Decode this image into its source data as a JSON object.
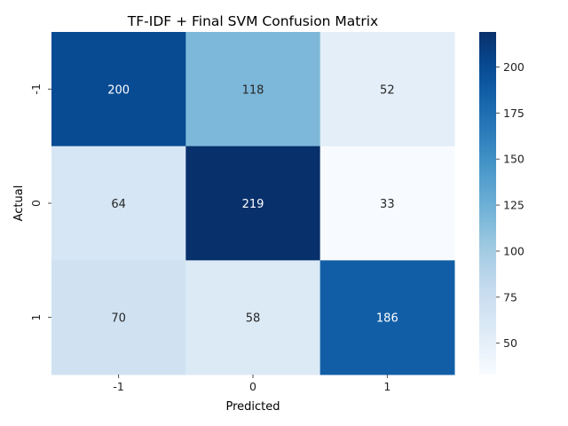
{
  "chart_data": {
    "type": "heatmap",
    "title": "TF-IDF + Final SVM Confusion Matrix",
    "xlabel": "Predicted",
    "ylabel": "Actual",
    "x_categories": [
      "-1",
      "0",
      "1"
    ],
    "y_categories": [
      "-1",
      "0",
      "1"
    ],
    "values": [
      [
        200,
        118,
        52
      ],
      [
        64,
        219,
        33
      ],
      [
        70,
        58,
        186
      ]
    ],
    "colormap": "Blues",
    "color_range": [
      33,
      219
    ],
    "colorbar_ticks": [
      50,
      75,
      100,
      125,
      150,
      175,
      200
    ],
    "annotated": true
  }
}
